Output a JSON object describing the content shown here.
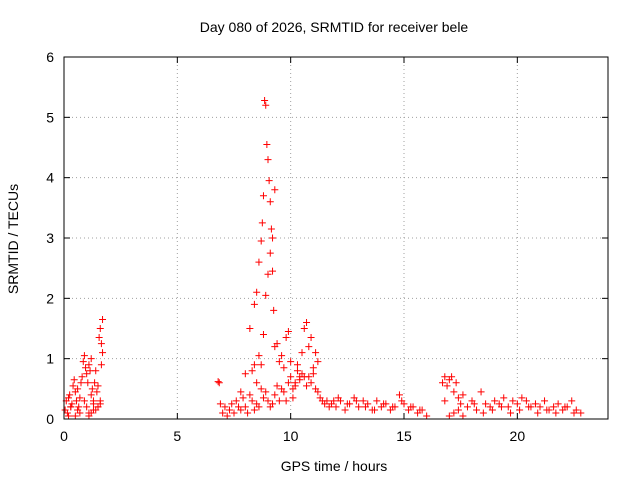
{
  "chart_data": {
    "type": "scatter",
    "title": "Day 080 of 2026, SRMTID for receiver bele",
    "xlabel": "GPS time / hours",
    "ylabel": "SRMTID / TECUs",
    "xlim": [
      0,
      24
    ],
    "ylim": [
      0,
      6
    ],
    "xticks": [
      0,
      5,
      10,
      15,
      20
    ],
    "yticks": [
      0,
      1,
      2,
      3,
      4,
      5,
      6
    ],
    "grid": true,
    "marker": "+",
    "color": "#ff0000",
    "series": [
      {
        "name": "SRMTID",
        "x": [
          0.05,
          0.1,
          0.15,
          0.2,
          0.25,
          0.3,
          0.35,
          0.4,
          0.45,
          0.5,
          0.55,
          0.6,
          0.65,
          0.7,
          0.75,
          0.8,
          0.85,
          0.9,
          0.95,
          1.0,
          1.05,
          1.1,
          1.15,
          1.2,
          1.25,
          1.3,
          1.35,
          1.4,
          1.45,
          1.5,
          1.55,
          1.6,
          1.65,
          1.7,
          0.2,
          0.3,
          0.5,
          0.6,
          0.7,
          0.9,
          1.0,
          1.1,
          1.2,
          1.3,
          1.4,
          1.5,
          1.6,
          1.65,
          1.7,
          1.1,
          1.2,
          1.3,
          1.5,
          1.6,
          6.8,
          6.85,
          6.9,
          7.0,
          7.1,
          7.2,
          7.3,
          7.4,
          7.5,
          7.6,
          7.7,
          7.8,
          7.9,
          8.0,
          8.1,
          8.2,
          8.3,
          8.4,
          8.5,
          8.6,
          8.7,
          8.8,
          8.9,
          9.0,
          9.1,
          9.2,
          9.3,
          9.4,
          9.5,
          9.6,
          9.7,
          9.8,
          9.9,
          10.0,
          10.1,
          10.2,
          10.3,
          10.4,
          10.5,
          10.6,
          10.7,
          10.8,
          10.9,
          11.0,
          11.1,
          11.2,
          11.3,
          11.4,
          11.5,
          11.6,
          11.7,
          11.8,
          11.9,
          7.8,
          8.0,
          8.2,
          8.4,
          8.5,
          8.6,
          8.7,
          8.75,
          8.8,
          8.85,
          8.9,
          8.95,
          9.0,
          9.05,
          9.1,
          9.15,
          9.2,
          9.25,
          9.3,
          8.3,
          8.4,
          8.5,
          8.6,
          8.7,
          8.8,
          8.9,
          9.0,
          9.1,
          9.2,
          9.3,
          9.4,
          9.5,
          9.6,
          9.7,
          9.8,
          9.9,
          10.0,
          10.1,
          10.2,
          10.3,
          10.4,
          10.5,
          10.6,
          10.7,
          10.8,
          10.9,
          11.0,
          11.1,
          11.2,
          12.0,
          12.2,
          12.4,
          12.6,
          12.8,
          13.0,
          13.2,
          13.4,
          13.6,
          13.8,
          14.0,
          14.2,
          14.4,
          14.6,
          14.8,
          15.0,
          15.2,
          15.4,
          15.6,
          15.8,
          16.0,
          12.1,
          12.5,
          12.9,
          13.3,
          13.7,
          14.1,
          14.5,
          14.9,
          15.3,
          15.7,
          16.7,
          16.8,
          16.9,
          17.0,
          17.1,
          17.2,
          17.3,
          17.4,
          17.5,
          17.6,
          17.8,
          18.0,
          18.2,
          18.4,
          18.6,
          18.8,
          19.0,
          19.2,
          19.4,
          19.6,
          19.8,
          20.0,
          20.2,
          20.4,
          20.6,
          20.8,
          21.0,
          21.2,
          21.4,
          21.6,
          21.8,
          22.0,
          22.2,
          22.4,
          22.6,
          22.8,
          16.8,
          17.0,
          17.2,
          17.4,
          17.6,
          18.1,
          18.5,
          18.9,
          19.3,
          19.7,
          20.1,
          20.5,
          20.9,
          21.3,
          21.7,
          22.1,
          22.5
        ],
        "y": [
          0.15,
          0.3,
          0.1,
          0.35,
          0.4,
          0.2,
          0.25,
          0.55,
          0.65,
          0.45,
          0.3,
          0.5,
          0.2,
          0.35,
          0.6,
          0.7,
          0.95,
          1.05,
          0.85,
          0.75,
          0.6,
          0.9,
          0.8,
          1.0,
          0.5,
          0.3,
          0.6,
          0.8,
          0.45,
          0.55,
          1.35,
          1.5,
          1.25,
          1.65,
          0.05,
          0.2,
          0.05,
          0.15,
          0.1,
          0.3,
          0.2,
          0.1,
          0.4,
          0.25,
          0.15,
          0.2,
          0.3,
          0.9,
          1.1,
          0.05,
          0.1,
          0.15,
          0.2,
          0.25,
          0.62,
          0.6,
          0.25,
          0.1,
          0.2,
          0.05,
          0.15,
          0.25,
          0.1,
          0.3,
          0.2,
          0.15,
          0.35,
          0.2,
          0.1,
          0.4,
          0.3,
          0.15,
          0.25,
          0.2,
          0.5,
          0.35,
          0.45,
          0.3,
          0.2,
          0.25,
          0.4,
          0.55,
          0.3,
          0.5,
          0.45,
          0.3,
          0.6,
          0.7,
          0.5,
          0.6,
          0.8,
          0.65,
          0.75,
          0.7,
          0.55,
          0.7,
          0.6,
          0.75,
          0.5,
          0.45,
          0.35,
          0.3,
          0.25,
          0.3,
          0.2,
          0.25,
          0.3,
          0.45,
          0.75,
          1.5,
          1.9,
          2.1,
          2.6,
          2.95,
          3.25,
          3.7,
          5.28,
          5.2,
          4.55,
          4.3,
          3.95,
          3.6,
          3.15,
          2.45,
          1.8,
          1.2,
          0.8,
          0.9,
          0.6,
          1.05,
          0.9,
          1.4,
          2.05,
          2.4,
          2.75,
          3.0,
          3.8,
          1.25,
          0.95,
          1.05,
          0.85,
          1.35,
          1.45,
          0.95,
          0.35,
          0.55,
          0.9,
          0.7,
          1.1,
          1.5,
          1.6,
          1.2,
          1.35,
          0.85,
          1.1,
          0.95,
          0.2,
          0.3,
          0.15,
          0.25,
          0.35,
          0.2,
          0.3,
          0.25,
          0.15,
          0.3,
          0.2,
          0.25,
          0.15,
          0.2,
          0.4,
          0.25,
          0.15,
          0.2,
          0.1,
          0.15,
          0.05,
          0.35,
          0.25,
          0.3,
          0.2,
          0.15,
          0.25,
          0.2,
          0.3,
          0.2,
          0.15,
          0.6,
          0.7,
          0.55,
          0.65,
          0.7,
          0.45,
          0.6,
          0.35,
          0.25,
          0.4,
          0.2,
          0.3,
          0.15,
          0.45,
          0.25,
          0.2,
          0.3,
          0.25,
          0.35,
          0.2,
          0.3,
          0.25,
          0.35,
          0.3,
          0.2,
          0.25,
          0.2,
          0.3,
          0.15,
          0.2,
          0.25,
          0.15,
          0.2,
          0.3,
          0.15,
          0.1,
          0.3,
          0.05,
          0.1,
          0.15,
          0.05,
          0.25,
          0.1,
          0.15,
          0.2,
          0.1,
          0.15,
          0.2,
          0.1,
          0.15,
          0.1,
          0.2,
          0.1
        ]
      }
    ]
  }
}
